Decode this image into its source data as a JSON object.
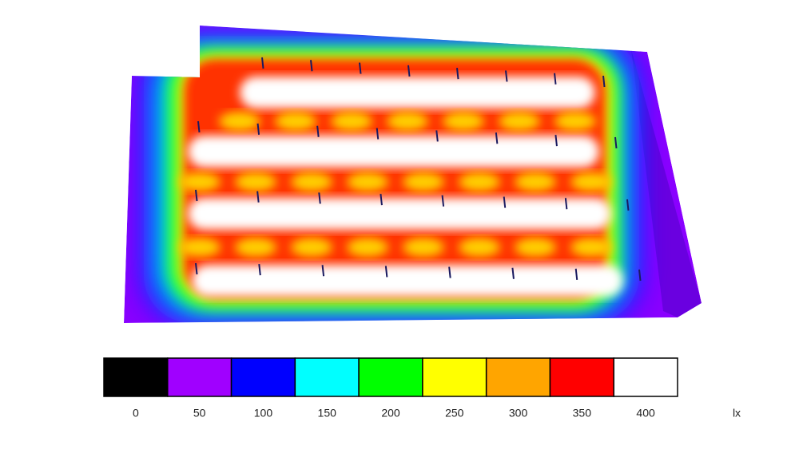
{
  "legend": {
    "stops": [
      {
        "label": "0",
        "color": "#000000"
      },
      {
        "label": "50",
        "color": "#a000ff"
      },
      {
        "label": "100",
        "color": "#0000ff"
      },
      {
        "label": "150",
        "color": "#00ffff"
      },
      {
        "label": "200",
        "color": "#00ff00"
      },
      {
        "label": "250",
        "color": "#ffff00"
      },
      {
        "label": "300",
        "color": "#ffa500"
      },
      {
        "label": "350",
        "color": "#ff0000"
      },
      {
        "label": "400",
        "color": "#ffffff"
      }
    ],
    "unit": "lx"
  }
}
